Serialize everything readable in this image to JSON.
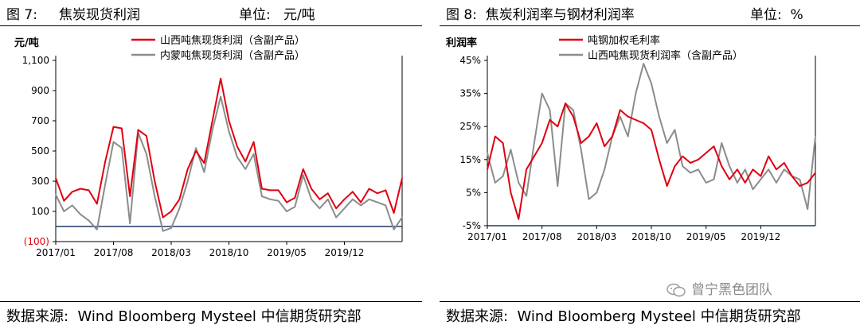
{
  "left_panel": {
    "title": "图 7:     焦炭现货利润",
    "unit": "单位:   元/吨",
    "source": "数据来源:  Wind Bloomberg Mysteel 中信期货研究部"
  },
  "right_panel": {
    "title": "图 8:  焦炭利润率与钢材利润率",
    "unit": "单位:  %",
    "source": "数据来源:  Wind Bloomberg Mysteel 中信期货研究部"
  },
  "watermark": {
    "text": "曾宁黑色团队",
    "icon": "wechat-icon"
  },
  "colors": {
    "red": "#e0000f",
    "gray": "#8c8c8c",
    "axis": "#1f3864",
    "negative_label": "#e0000f"
  },
  "chart_data": [
    {
      "type": "line",
      "title": "焦炭现货利润",
      "ylabel": "元/吨",
      "ylim": [
        -100,
        1100
      ],
      "yticks": [
        -100,
        100,
        300,
        500,
        700,
        900,
        1100
      ],
      "ytick_labels": [
        "(100)",
        "100",
        "300",
        "500",
        "700",
        "900",
        "1,100"
      ],
      "xlim": [
        "2017-01",
        "2020-07"
      ],
      "xticks": [
        "2017/01",
        "2017/08",
        "2018/03",
        "2018/10",
        "2019/05",
        "2019/12"
      ],
      "legend": "top",
      "x": [
        "2017-01",
        "2017-02",
        "2017-03",
        "2017-04",
        "2017-05",
        "2017-06",
        "2017-07",
        "2017-08",
        "2017-09",
        "2017-10",
        "2017-11",
        "2017-12",
        "2018-01",
        "2018-02",
        "2018-03",
        "2018-04",
        "2018-05",
        "2018-06",
        "2018-07",
        "2018-08",
        "2018-09",
        "2018-10",
        "2018-11",
        "2018-12",
        "2019-01",
        "2019-02",
        "2019-03",
        "2019-04",
        "2019-05",
        "2019-06",
        "2019-07",
        "2019-08",
        "2019-09",
        "2019-10",
        "2019-11",
        "2019-12",
        "2020-01",
        "2020-02",
        "2020-03",
        "2020-04",
        "2020-05",
        "2020-06",
        "2020-07"
      ],
      "series": [
        {
          "name": "山西吨焦现货利润（含副产品）",
          "color": "#e0000f",
          "values": [
            320,
            170,
            230,
            250,
            240,
            150,
            430,
            660,
            650,
            200,
            640,
            600,
            300,
            60,
            100,
            180,
            380,
            500,
            420,
            700,
            980,
            700,
            530,
            430,
            560,
            250,
            240,
            240,
            160,
            190,
            380,
            250,
            180,
            220,
            120,
            180,
            230,
            160,
            250,
            220,
            240,
            90,
            320
          ]
        },
        {
          "name": "内蒙吨焦现货利润（含副产品）",
          "color": "#8c8c8c",
          "values": [
            210,
            100,
            140,
            80,
            40,
            -20,
            280,
            560,
            520,
            20,
            620,
            480,
            200,
            -30,
            -10,
            120,
            300,
            520,
            360,
            640,
            860,
            630,
            460,
            380,
            480,
            200,
            180,
            170,
            100,
            130,
            340,
            180,
            120,
            180,
            60,
            120,
            180,
            140,
            180,
            160,
            140,
            -20,
            60
          ]
        }
      ]
    },
    {
      "type": "line",
      "title": "焦炭利润率与钢材利润率",
      "ylabel": "利润率",
      "ylim": [
        -0.05,
        0.45
      ],
      "yticks": [
        -0.05,
        0.05,
        0.15,
        0.25,
        0.35,
        0.45
      ],
      "ytick_labels": [
        "-5%",
        "5%",
        "15%",
        "25%",
        "35%",
        "45%"
      ],
      "xlim": [
        "2017-01",
        "2020-07"
      ],
      "xticks": [
        "2017/01",
        "2017/08",
        "2018/03",
        "2018/10",
        "2019/05",
        "2019/12"
      ],
      "legend": "top",
      "x": [
        "2017-01",
        "2017-02",
        "2017-03",
        "2017-04",
        "2017-05",
        "2017-06",
        "2017-07",
        "2017-08",
        "2017-09",
        "2017-10",
        "2017-11",
        "2017-12",
        "2018-01",
        "2018-02",
        "2018-03",
        "2018-04",
        "2018-05",
        "2018-06",
        "2018-07",
        "2018-08",
        "2018-09",
        "2018-10",
        "2018-11",
        "2018-12",
        "2019-01",
        "2019-02",
        "2019-03",
        "2019-04",
        "2019-05",
        "2019-06",
        "2019-07",
        "2019-08",
        "2019-09",
        "2019-10",
        "2019-11",
        "2019-12",
        "2020-01",
        "2020-02",
        "2020-03",
        "2020-04",
        "2020-05",
        "2020-06",
        "2020-07"
      ],
      "series": [
        {
          "name": "吨钢加权毛利率",
          "color": "#e0000f",
          "values": [
            0.12,
            0.22,
            0.2,
            0.05,
            -0.03,
            0.12,
            0.16,
            0.2,
            0.27,
            0.25,
            0.32,
            0.28,
            0.2,
            0.22,
            0.26,
            0.19,
            0.22,
            0.3,
            0.28,
            0.27,
            0.26,
            0.24,
            0.15,
            0.07,
            0.13,
            0.16,
            0.14,
            0.15,
            0.17,
            0.19,
            0.13,
            0.09,
            0.12,
            0.08,
            0.12,
            0.1,
            0.16,
            0.12,
            0.14,
            0.1,
            0.07,
            0.08,
            0.11
          ]
        },
        {
          "name": "山西吨焦现货利润率（含副产品）",
          "color": "#8c8c8c",
          "values": [
            0.17,
            0.08,
            0.1,
            0.18,
            0.08,
            0.04,
            0.2,
            0.35,
            0.3,
            0.07,
            0.32,
            0.3,
            0.18,
            0.03,
            0.05,
            0.12,
            0.22,
            0.28,
            0.22,
            0.35,
            0.44,
            0.38,
            0.28,
            0.2,
            0.24,
            0.13,
            0.11,
            0.12,
            0.08,
            0.09,
            0.2,
            0.13,
            0.08,
            0.12,
            0.06,
            0.09,
            0.12,
            0.08,
            0.12,
            0.1,
            0.09,
            0.0,
            0.22
          ]
        }
      ]
    }
  ]
}
